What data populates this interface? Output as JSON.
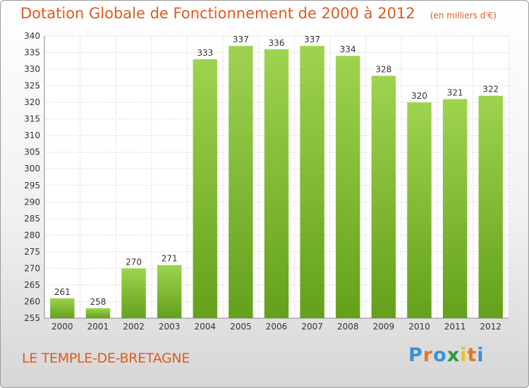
{
  "chart_data": {
    "type": "bar",
    "title": "Dotation Globale de Fonctionnement de 2000 à 2012",
    "subtitle": "(en milliers d'€)",
    "categories": [
      "2000",
      "2001",
      "2002",
      "2003",
      "2004",
      "2005",
      "2006",
      "2007",
      "2008",
      "2009",
      "2010",
      "2011",
      "2012"
    ],
    "values": [
      261,
      258,
      270,
      271,
      333,
      337,
      336,
      337,
      334,
      328,
      320,
      321,
      322
    ],
    "ylim": [
      255,
      340
    ],
    "yticks": [
      255,
      260,
      265,
      270,
      275,
      280,
      285,
      290,
      295,
      300,
      305,
      310,
      315,
      320,
      325,
      330,
      335,
      340
    ],
    "grid": true,
    "bar_color": "#7ec13a"
  },
  "footer": {
    "commune": "LE TEMPLE-DE-BRETAGNE",
    "logo": "Proxiti",
    "logo_colors": [
      "#3d8fd6",
      "#e8742a",
      "#3d8fd6",
      "#2a9b3d",
      "#e8c12a",
      "#e8742a",
      "#3d8fd6"
    ]
  }
}
